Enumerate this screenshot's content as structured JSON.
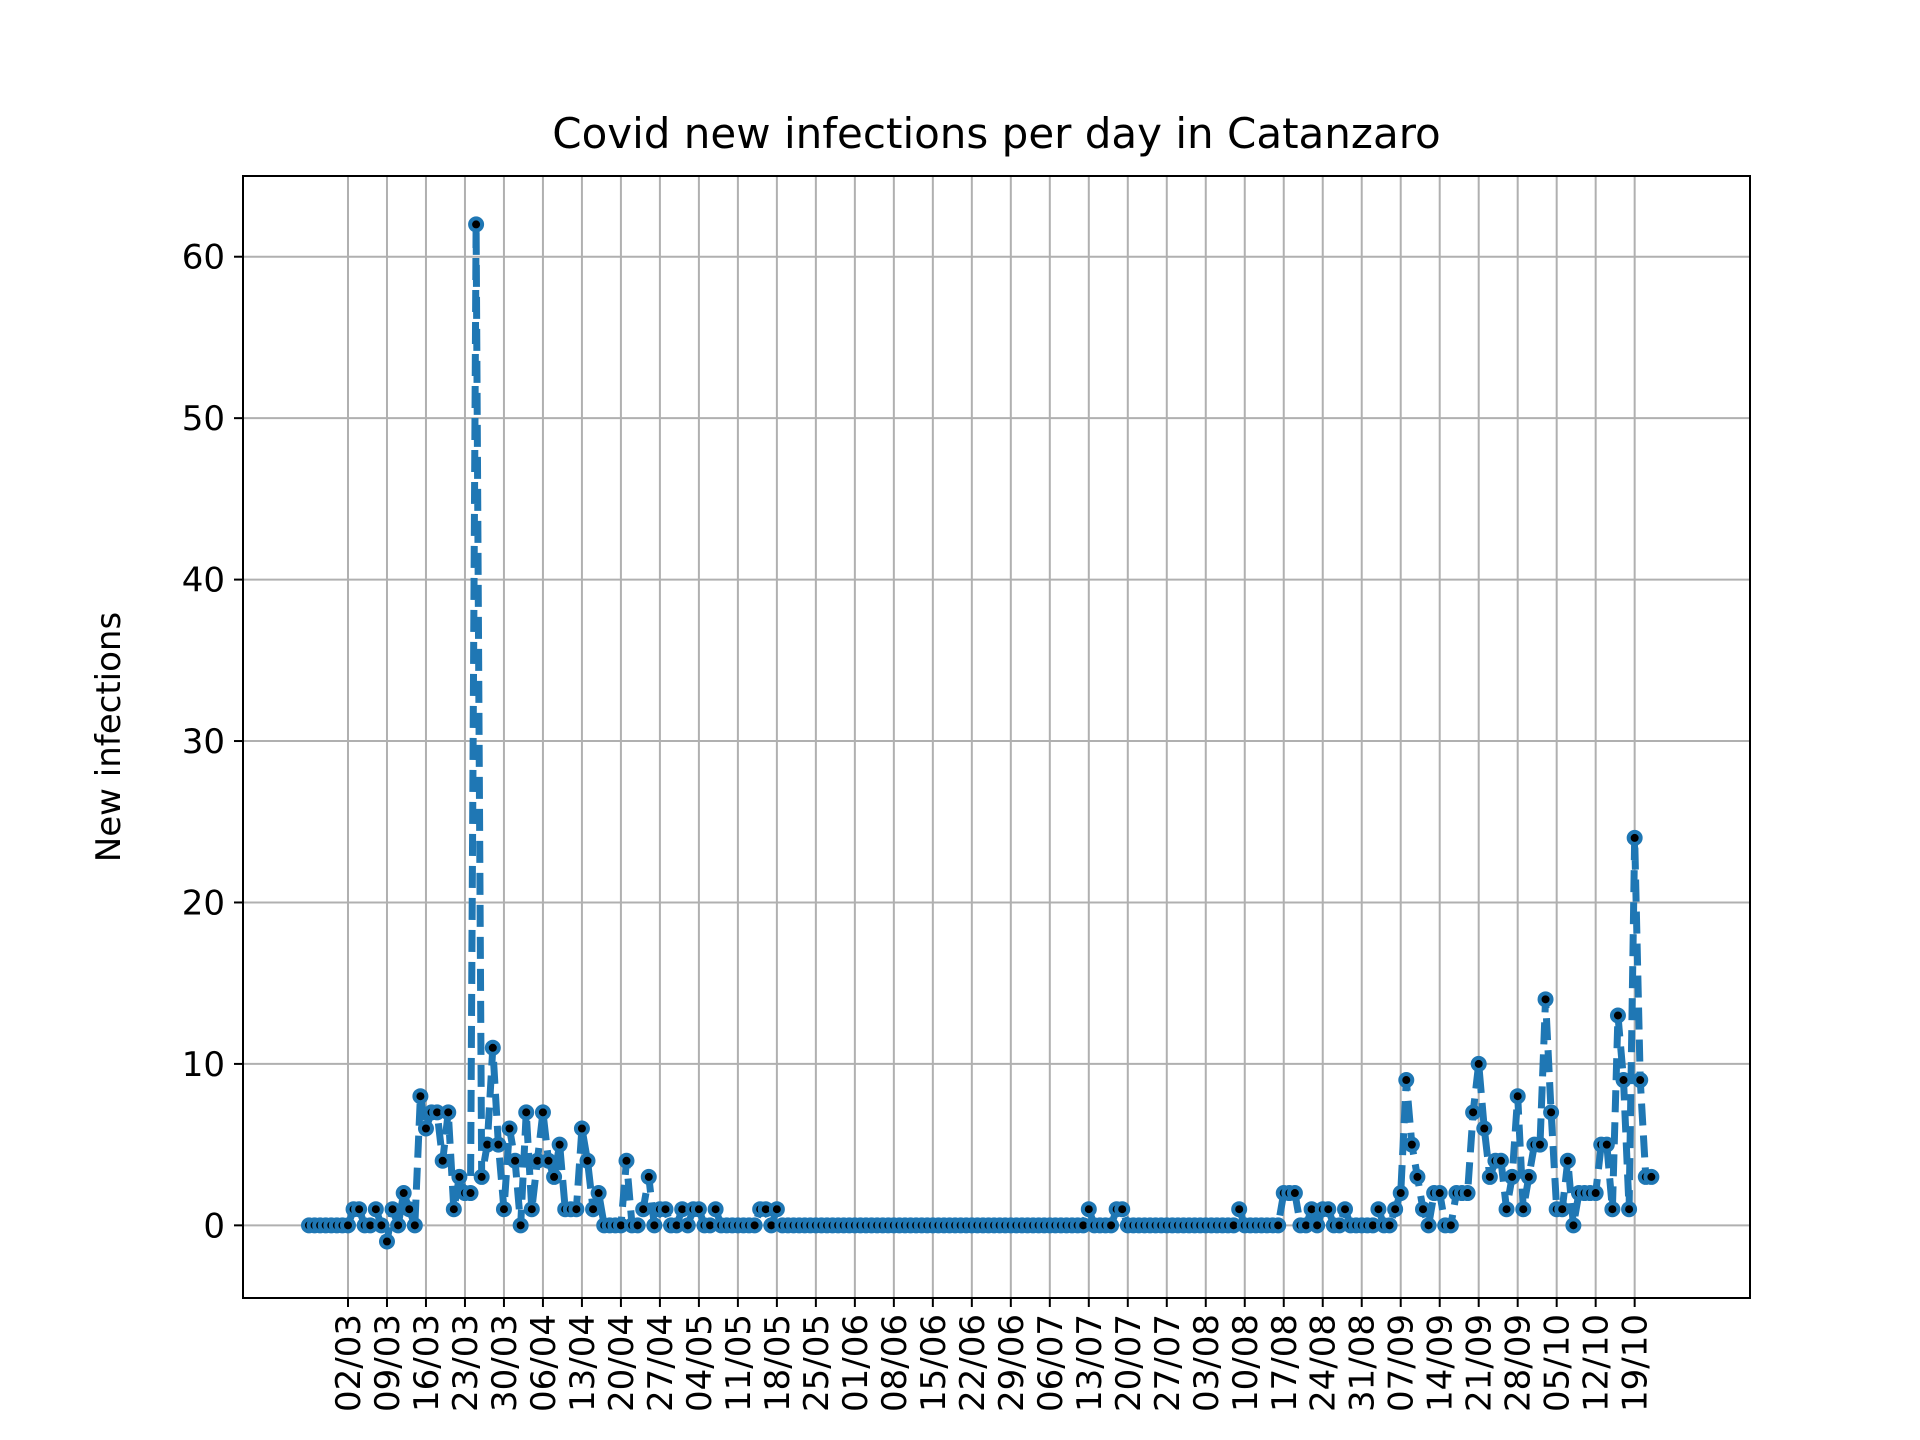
{
  "chart_data": {
    "type": "line",
    "title": "Covid new infections per day in Catanzaro",
    "xlabel": "",
    "ylabel": "New infections",
    "x_start_date": "2020-02-24",
    "x_tick_labels": [
      "02/03",
      "09/03",
      "16/03",
      "23/03",
      "30/03",
      "06/04",
      "13/04",
      "20/04",
      "27/04",
      "04/05",
      "11/05",
      "18/05",
      "25/05",
      "01/06",
      "08/06",
      "15/06",
      "22/06",
      "29/06",
      "06/07",
      "13/07",
      "20/07",
      "27/07",
      "03/08",
      "10/08",
      "17/08",
      "24/08",
      "31/08",
      "07/09",
      "14/09",
      "21/09",
      "28/09",
      "05/10",
      "12/10",
      "19/10"
    ],
    "y_ticks": [
      0,
      10,
      20,
      30,
      40,
      50,
      60
    ],
    "ylim": [
      -4.5,
      65
    ],
    "grid": true,
    "legend": "none",
    "line_style": "dashed",
    "marker": "circle",
    "colors": {
      "line": "#1f77b4",
      "marker_face": "#000000",
      "grid": "#b0b0b0",
      "frame": "#000000"
    },
    "series": [
      {
        "values": [
          0,
          0,
          0,
          0,
          0,
          0,
          0,
          0,
          1,
          1,
          0,
          0,
          1,
          0,
          -1,
          1,
          0,
          2,
          1,
          0,
          8,
          6,
          7,
          7,
          4,
          7,
          1,
          3,
          2,
          2,
          62,
          3,
          5,
          11,
          5,
          1,
          6,
          4,
          0,
          7,
          1,
          4,
          7,
          4,
          3,
          5,
          1,
          1,
          1,
          6,
          4,
          1,
          2,
          0,
          0,
          0,
          0,
          4,
          0,
          0,
          1,
          3,
          0,
          1,
          1,
          0,
          0,
          1,
          0,
          1,
          1,
          0,
          0,
          1,
          0,
          0,
          0,
          0,
          0,
          0,
          0,
          1,
          1,
          0,
          1,
          0,
          0,
          0,
          0,
          0,
          0,
          0,
          0,
          0,
          0,
          0,
          0,
          0,
          0,
          0,
          0,
          0,
          0,
          0,
          0,
          0,
          0,
          0,
          0,
          0,
          0,
          0,
          0,
          0,
          0,
          0,
          0,
          0,
          0,
          0,
          0,
          0,
          0,
          0,
          0,
          0,
          0,
          0,
          0,
          0,
          0,
          0,
          0,
          0,
          0,
          0,
          0,
          0,
          0,
          0,
          1,
          0,
          0,
          0,
          0,
          1,
          1,
          0,
          0,
          0,
          0,
          0,
          0,
          0,
          0,
          0,
          0,
          0,
          0,
          0,
          0,
          0,
          0,
          0,
          0,
          0,
          0,
          1,
          0,
          0,
          0,
          0,
          0,
          0,
          0,
          2,
          2,
          2,
          0,
          0,
          1,
          0,
          1,
          1,
          0,
          0,
          1,
          0,
          0,
          0,
          0,
          0,
          1,
          0,
          0,
          1,
          2,
          9,
          5,
          3,
          1,
          0,
          2,
          2,
          0,
          0,
          2,
          2,
          2,
          7,
          10,
          6,
          3,
          4,
          4,
          1,
          3,
          8,
          1,
          3,
          5,
          5,
          14,
          7,
          1,
          1,
          4,
          0,
          2,
          2,
          2,
          2,
          5,
          5,
          1,
          13,
          9,
          1,
          24,
          9,
          3,
          3
        ]
      }
    ]
  }
}
